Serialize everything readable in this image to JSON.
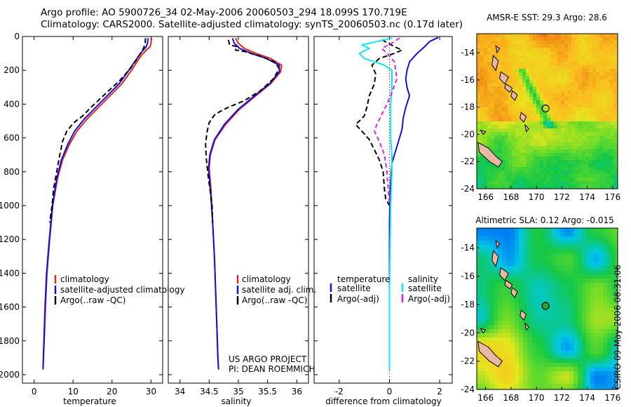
{
  "header": {
    "title_line1": "Argo profile: AO 5900726_34 02-May-2006 20060503_294 18.099S 170.719E",
    "title_line2": "Climatology: CARS2000. Satellite-adjusted climatology: synTS_20060503.nc (0.17d later)"
  },
  "footer": {
    "project_line1": "US ARGO PROJECT",
    "project_line2": "PI: DEAN ROEMMICH",
    "stamp": "CSIRO 09-May-2006 08:31:06"
  },
  "colors": {
    "climatology": "#e82020",
    "satellite": "#1010e0",
    "argo": "#000000",
    "sat_salinity": "#10e8f0",
    "argo_salinity": "#e020e0"
  },
  "chart_data": [
    {
      "type": "line",
      "id": "temperature",
      "xlabel": "temperature",
      "ylabel": "",
      "xlim": [
        -3,
        33
      ],
      "ylim": [
        2050,
        0
      ],
      "xticks": [
        0,
        10,
        20,
        30
      ],
      "yticks": [
        0,
        200,
        400,
        600,
        800,
        1000,
        1200,
        1400,
        1600,
        1800,
        2000
      ],
      "legend": [
        "climatology",
        "satellite-adjusted climatology",
        "Argo(..raw -QC)"
      ],
      "series": [
        {
          "name": "climatology",
          "color": "#e82020",
          "dash": "",
          "points": [
            [
              30.2,
              10
            ],
            [
              30.0,
              40
            ],
            [
              29.8,
              60
            ],
            [
              28.8,
              80
            ],
            [
              27.6,
              110
            ],
            [
              26.4,
              150
            ],
            [
              25.0,
              200
            ],
            [
              22.5,
              280
            ],
            [
              19.5,
              350
            ],
            [
              16.5,
              420
            ],
            [
              13.5,
              490
            ],
            [
              11.0,
              560
            ],
            [
              9.0,
              640
            ],
            [
              7.3,
              730
            ],
            [
              6.0,
              840
            ],
            [
              4.8,
              1000
            ],
            [
              4.0,
              1200
            ],
            [
              3.3,
              1400
            ],
            [
              2.9,
              1600
            ],
            [
              2.6,
              1800
            ],
            [
              2.3,
              1960
            ]
          ]
        },
        {
          "name": "satellite-adjusted climatology",
          "color": "#1010e0",
          "dash": "",
          "points": [
            [
              29.3,
              10
            ],
            [
              29.1,
              40
            ],
            [
              28.8,
              60
            ],
            [
              28.0,
              80
            ],
            [
              27.0,
              110
            ],
            [
              25.8,
              150
            ],
            [
              24.3,
              200
            ],
            [
              21.8,
              280
            ],
            [
              18.8,
              350
            ],
            [
              15.8,
              420
            ],
            [
              12.8,
              490
            ],
            [
              10.4,
              560
            ],
            [
              8.6,
              640
            ],
            [
              7.0,
              730
            ],
            [
              5.8,
              840
            ],
            [
              4.7,
              1000
            ],
            [
              3.9,
              1200
            ],
            [
              3.2,
              1400
            ],
            [
              2.8,
              1600
            ],
            [
              2.5,
              1800
            ],
            [
              2.3,
              1970
            ]
          ]
        },
        {
          "name": "Argo(..raw -QC)",
          "color": "#000000",
          "dash": "7,4",
          "points": [
            [
              28.6,
              10
            ],
            [
              28.5,
              40
            ],
            [
              28.1,
              70
            ],
            [
              27.3,
              100
            ],
            [
              26.2,
              140
            ],
            [
              24.7,
              190
            ],
            [
              22.0,
              260
            ],
            [
              18.7,
              330
            ],
            [
              15.0,
              410
            ],
            [
              12.4,
              470
            ],
            [
              10.2,
              510
            ],
            [
              8.4,
              560
            ],
            [
              7.3,
              620
            ],
            [
              6.6,
              700
            ],
            [
              5.8,
              800
            ],
            [
              5.0,
              900
            ],
            [
              4.6,
              1000
            ],
            [
              4.0,
              1100
            ]
          ]
        }
      ]
    },
    {
      "type": "line",
      "id": "salinity",
      "xlabel": "salinity",
      "ylabel": "",
      "xlim": [
        33.8,
        36.2
      ],
      "ylim": [
        2050,
        0
      ],
      "xticks": [
        34,
        34.5,
        35,
        35.5,
        36
      ],
      "yticks": [],
      "legend": [
        "climatology",
        "satellite adj. clim.",
        "Argo(..raw -QC)"
      ],
      "series": [
        {
          "name": "climatology",
          "color": "#e82020",
          "dash": "",
          "points": [
            [
              34.95,
              10
            ],
            [
              35.0,
              40
            ],
            [
              35.1,
              70
            ],
            [
              35.3,
              100
            ],
            [
              35.55,
              130
            ],
            [
              35.74,
              170
            ],
            [
              35.72,
              210
            ],
            [
              35.55,
              280
            ],
            [
              35.3,
              350
            ],
            [
              35.02,
              430
            ],
            [
              34.78,
              520
            ],
            [
              34.6,
              610
            ],
            [
              34.52,
              700
            ],
            [
              34.5,
              780
            ],
            [
              34.53,
              900
            ],
            [
              34.56,
              1100
            ],
            [
              34.59,
              1300
            ],
            [
              34.61,
              1500
            ],
            [
              34.63,
              1700
            ],
            [
              34.65,
              1900
            ],
            [
              34.66,
              1960
            ]
          ]
        },
        {
          "name": "satellite adj. clim.",
          "color": "#1010e0",
          "dash": "",
          "points": [
            [
              34.9,
              10
            ],
            [
              34.93,
              40
            ],
            [
              35.02,
              70
            ],
            [
              35.22,
              100
            ],
            [
              35.48,
              130
            ],
            [
              35.7,
              170
            ],
            [
              35.7,
              210
            ],
            [
              35.53,
              280
            ],
            [
              35.28,
              350
            ],
            [
              35.0,
              430
            ],
            [
              34.76,
              520
            ],
            [
              34.59,
              610
            ],
            [
              34.51,
              700
            ],
            [
              34.49,
              780
            ],
            [
              34.52,
              900
            ],
            [
              34.56,
              1100
            ],
            [
              34.59,
              1300
            ],
            [
              34.61,
              1500
            ],
            [
              34.63,
              1700
            ],
            [
              34.65,
              1900
            ],
            [
              34.66,
              1970
            ]
          ]
        },
        {
          "name": "Argo(..raw -QC)",
          "color": "#000000",
          "dash": "7,4",
          "points": [
            [
              34.83,
              20
            ],
            [
              34.85,
              50
            ],
            [
              34.98,
              60
            ],
            [
              34.95,
              80
            ],
            [
              35.12,
              90
            ],
            [
              35.4,
              120
            ],
            [
              35.62,
              150
            ],
            [
              35.7,
              190
            ],
            [
              35.6,
              250
            ],
            [
              35.38,
              320
            ],
            [
              35.1,
              380
            ],
            [
              34.82,
              420
            ],
            [
              34.6,
              460
            ],
            [
              34.5,
              510
            ],
            [
              34.46,
              570
            ],
            [
              34.44,
              640
            ],
            [
              34.45,
              720
            ],
            [
              34.48,
              820
            ],
            [
              34.52,
              920
            ],
            [
              34.55,
              1000
            ],
            [
              34.56,
              1100
            ]
          ]
        }
      ]
    },
    {
      "type": "line",
      "id": "difference",
      "xlabel": "difference from climatology",
      "ylabel": "",
      "xlim": [
        -3,
        2.5
      ],
      "ylim": [
        2050,
        0
      ],
      "xticks": [
        -2,
        0,
        2
      ],
      "yticks": [],
      "legend_left": [
        "temperature",
        "satellite",
        "Argo(-adj)"
      ],
      "legend_right": [
        "salinity",
        "satellite",
        "Argo(-adj)"
      ],
      "series": [
        {
          "name": "temperature satellite",
          "color": "#1010e0",
          "dash": "",
          "points": [
            [
              1.95,
              5
            ],
            [
              1.6,
              30
            ],
            [
              1.4,
              60
            ],
            [
              1.1,
              100
            ],
            [
              0.8,
              150
            ],
            [
              0.7,
              200
            ],
            [
              0.65,
              250
            ],
            [
              0.7,
              300
            ],
            [
              0.8,
              350
            ],
            [
              0.65,
              420
            ],
            [
              0.55,
              480
            ],
            [
              0.5,
              550
            ],
            [
              0.3,
              650
            ],
            [
              0.1,
              750
            ],
            [
              0.03,
              900
            ],
            [
              0.0,
              1100
            ],
            [
              0.0,
              1500
            ],
            [
              0.0,
              1970
            ]
          ]
        },
        {
          "name": "temperature Argo(-adj)",
          "color": "#000000",
          "dash": "7,4",
          "points": [
            [
              -0.3,
              20
            ],
            [
              0.2,
              60
            ],
            [
              0.5,
              80
            ],
            [
              0.2,
              100
            ],
            [
              -0.4,
              130
            ],
            [
              -0.7,
              170
            ],
            [
              -0.55,
              220
            ],
            [
              -0.6,
              280
            ],
            [
              -0.8,
              350
            ],
            [
              -0.9,
              420
            ],
            [
              -1.0,
              470
            ],
            [
              -1.2,
              500
            ],
            [
              -1.35,
              520
            ],
            [
              -1.1,
              560
            ],
            [
              -0.8,
              610
            ],
            [
              -0.6,
              670
            ],
            [
              -0.4,
              730
            ],
            [
              -0.25,
              800
            ],
            [
              -0.2,
              900
            ],
            [
              -0.15,
              960
            ],
            [
              0.0,
              1000
            ]
          ]
        },
        {
          "name": "salinity satellite",
          "color": "#10e8f0",
          "dash": "",
          "points": [
            [
              0.1,
              10
            ],
            [
              -0.5,
              30
            ],
            [
              -1.1,
              50
            ],
            [
              -0.8,
              70
            ],
            [
              -1.2,
              100
            ],
            [
              -1.0,
              130
            ],
            [
              -0.2,
              170
            ],
            [
              0.1,
              200
            ],
            [
              0.1,
              300
            ],
            [
              0.05,
              400
            ],
            [
              0.05,
              600
            ],
            [
              0.1,
              700
            ],
            [
              0.1,
              800
            ],
            [
              0.05,
              1000
            ],
            [
              0.0,
              1500
            ],
            [
              0.0,
              1970
            ]
          ]
        },
        {
          "name": "salinity Argo(-adj)",
          "color": "#e020e0",
          "dash": "6,4",
          "points": [
            [
              0.4,
              10
            ],
            [
              0.1,
              40
            ],
            [
              -0.3,
              70
            ],
            [
              -0.1,
              100
            ],
            [
              0.2,
              150
            ],
            [
              0.3,
              250
            ],
            [
              0.1,
              330
            ],
            [
              -0.1,
              400
            ],
            [
              -0.3,
              460
            ],
            [
              -0.5,
              520
            ],
            [
              -0.6,
              560
            ],
            [
              -0.4,
              620
            ],
            [
              -0.2,
              700
            ],
            [
              -0.1,
              800
            ],
            [
              -0.05,
              900
            ],
            [
              0.0,
              1000
            ]
          ]
        }
      ]
    },
    {
      "type": "heatmap",
      "id": "sst",
      "title": "AMSR-E SST: 29.3 Argo: 28.6",
      "xlim": [
        165.3,
        176.4
      ],
      "ylim": [
        -24,
        -12.6
      ],
      "xticks": [
        166,
        168,
        170,
        172,
        174,
        176
      ],
      "yticks": [
        -14,
        -16,
        -18,
        -20,
        -22,
        -24
      ],
      "profile_marker": {
        "lon": 170.72,
        "lat": -18.1
      }
    },
    {
      "type": "heatmap",
      "id": "sla",
      "title": "Altimetric SLA: 0.12 Argo: -0.015",
      "xlim": [
        165.3,
        176.4
      ],
      "ylim": [
        -24,
        -12.6
      ],
      "xticks": [
        166,
        168,
        170,
        172,
        174,
        176
      ],
      "yticks": [
        -14,
        -16,
        -18,
        -20,
        -22,
        -24
      ],
      "profile_marker": {
        "lon": 170.72,
        "lat": -18.1
      }
    }
  ]
}
